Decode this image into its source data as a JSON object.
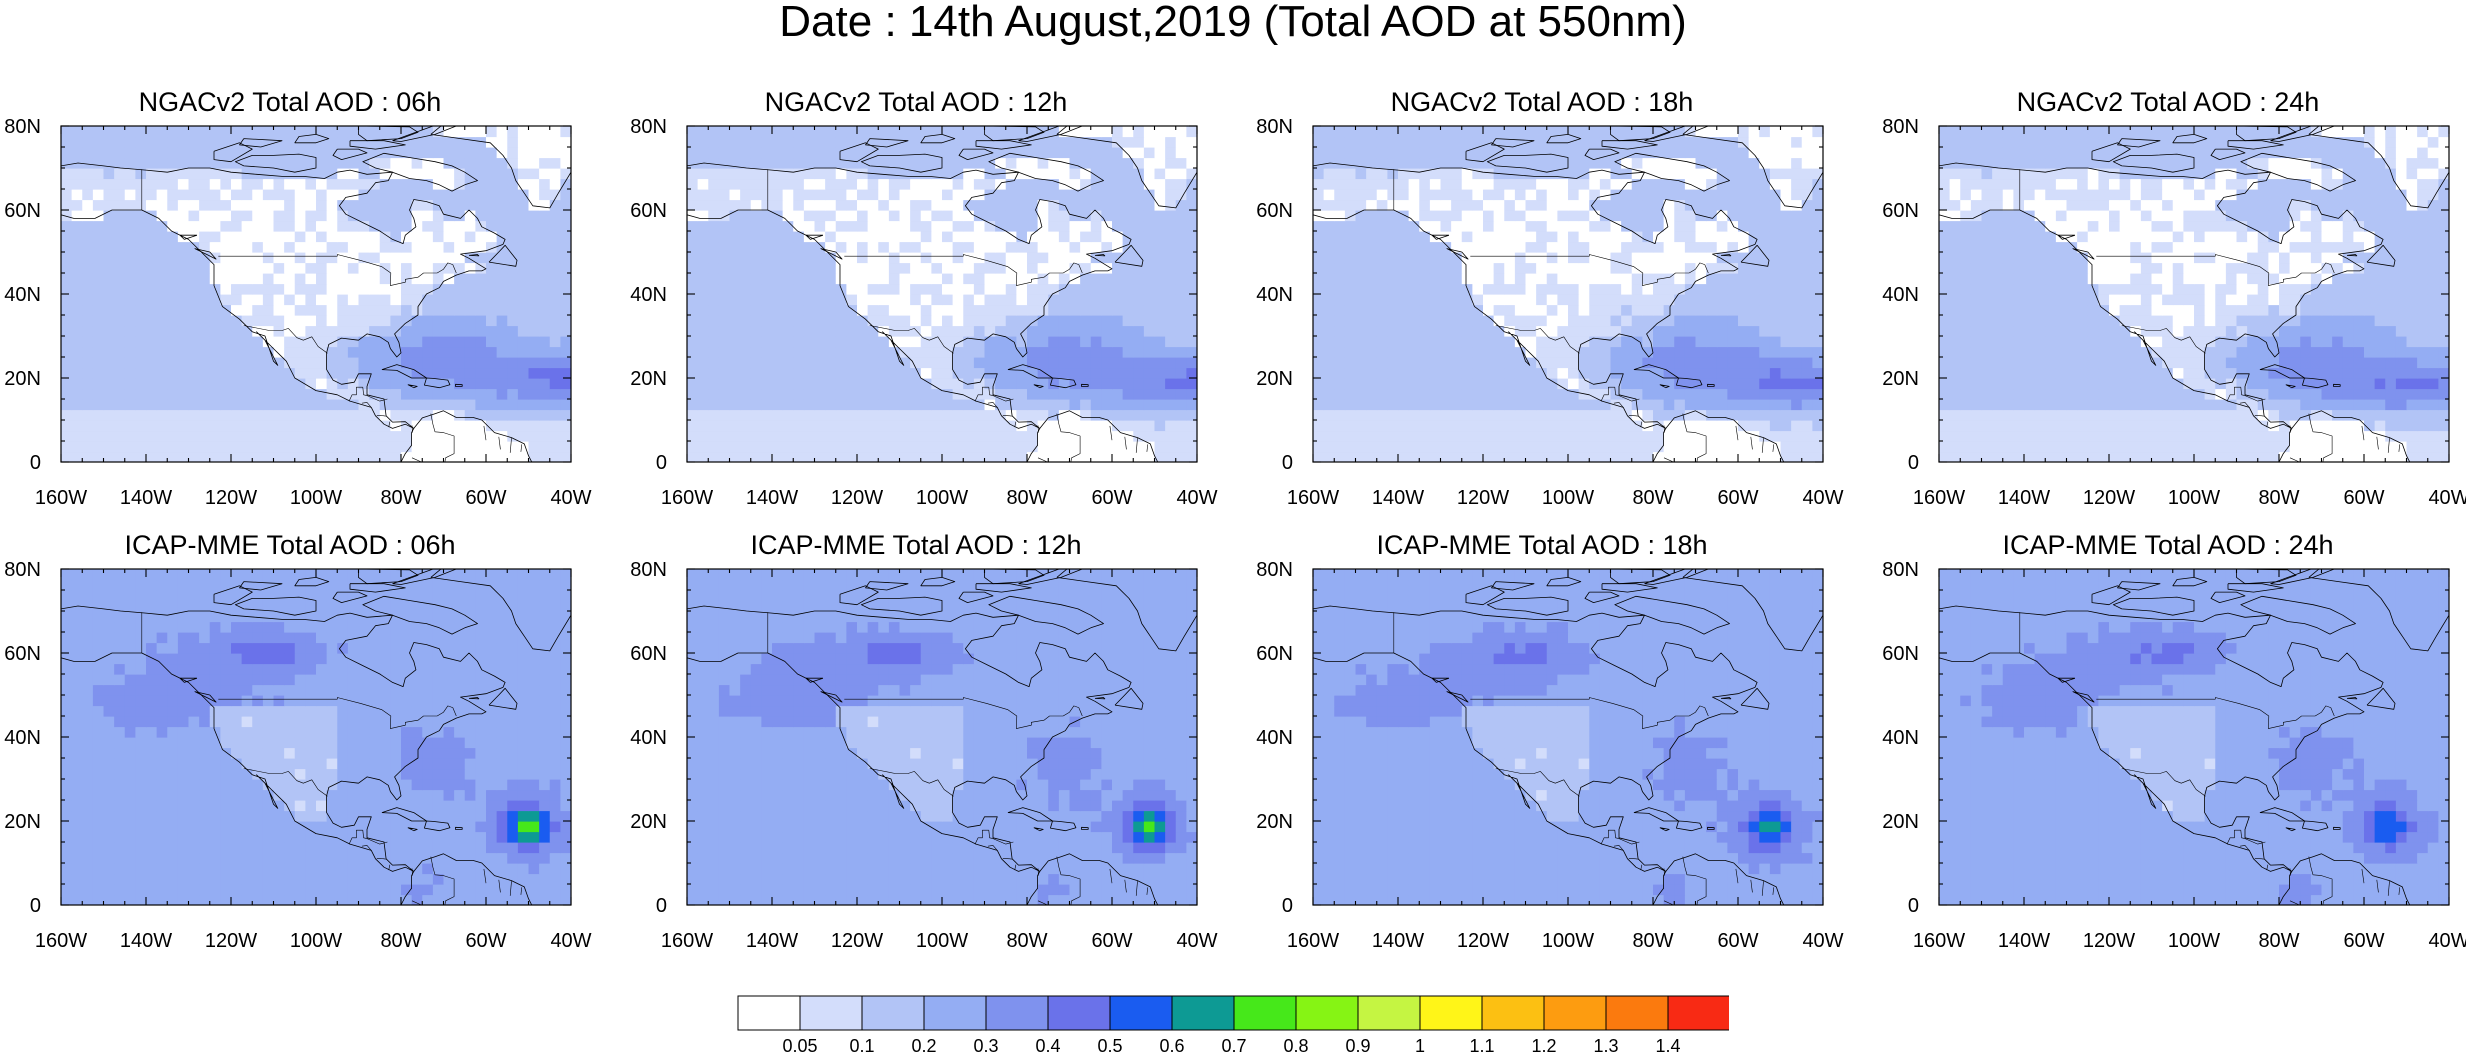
{
  "title": "Date : 14th August,2019 (Total AOD at 550nm)",
  "axes": {
    "x_ticks": [
      "160W",
      "140W",
      "120W",
      "100W",
      "80W",
      "60W",
      "40W"
    ],
    "y_ticks": [
      "80N",
      "60N",
      "40N",
      "20N",
      "0"
    ],
    "lon_range": [
      -160,
      -40
    ],
    "lat_range": [
      0,
      80
    ]
  },
  "panels": [
    {
      "title": "NGACv2 Total AOD : 06h",
      "model": "ngac",
      "hour": 6
    },
    {
      "title": "NGACv2 Total AOD : 12h",
      "model": "ngac",
      "hour": 12
    },
    {
      "title": "NGACv2 Total AOD : 18h",
      "model": "ngac",
      "hour": 18
    },
    {
      "title": "NGACv2 Total AOD : 24h",
      "model": "ngac",
      "hour": 24
    },
    {
      "title": "ICAP-MME Total AOD : 06h",
      "model": "icap",
      "hour": 6
    },
    {
      "title": "ICAP-MME Total AOD : 12h",
      "model": "icap",
      "hour": 12
    },
    {
      "title": "ICAP-MME Total AOD : 18h",
      "model": "icap",
      "hour": 18
    },
    {
      "title": "ICAP-MME Total AOD : 24h",
      "model": "icap",
      "hour": 24
    }
  ],
  "colorbar": {
    "labels": [
      "0.05",
      "0.1",
      "0.2",
      "0.3",
      "0.4",
      "0.5",
      "0.6",
      "0.7",
      "0.8",
      "0.9",
      "1",
      "1.1",
      "1.2",
      "1.3",
      "1.4"
    ],
    "colors": [
      "#ffffff",
      "#d3ddfb",
      "#b2c4f6",
      "#94adf3",
      "#7f92ee",
      "#6a72ea",
      "#1a5cf0",
      "#0d9a94",
      "#46e81a",
      "#86f414",
      "#c5f542",
      "#fff518",
      "#fcc012",
      "#fd9c10",
      "#fb7a0e",
      "#f82a14"
    ]
  }
}
